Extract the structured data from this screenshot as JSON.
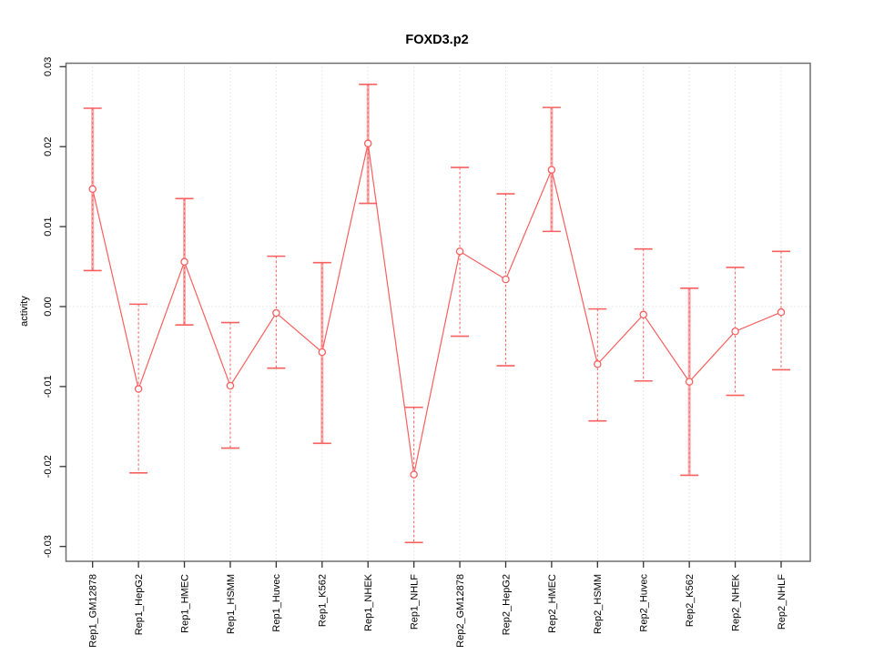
{
  "title": "FOXD3.p2",
  "chart_data": {
    "type": "line",
    "title": "FOXD3.p2",
    "xlabel": "",
    "ylabel": "activity",
    "ylim": [
      -0.031,
      0.031
    ],
    "yticks": [
      0.03,
      0.02,
      0.01,
      0.0,
      -0.01,
      -0.02,
      -0.03
    ],
    "ytick_labels": [
      "0.03",
      "0.02",
      "0.01",
      "0.00",
      "-0.01",
      "-0.02",
      "-0.03"
    ],
    "grid": {
      "vertical_per_category": true,
      "horizontal_at_zero_only": true,
      "style": "dotted"
    },
    "legend": "none",
    "marker": "open-circle",
    "colors": {
      "series": "#f95f5f",
      "error_band": "#f6acac",
      "grid": "#d4d4d4",
      "box": "#6f6f6f",
      "tick": "#333333"
    },
    "categories": [
      "Rep1_GM12878",
      "Rep1_HepG2",
      "Rep1_HMEC",
      "Rep1_HSMM",
      "Rep1_Huvec",
      "Rep1_K562",
      "Rep1_NHEK",
      "Rep1_NHLF",
      "Rep2_GM12878",
      "Rep2_HepG2",
      "Rep2_HMEC",
      "Rep2_HSMM",
      "Rep2_Huvec",
      "Rep2_K562",
      "Rep2_NHEK",
      "Rep2_NHLF"
    ],
    "points": [
      {
        "label": "Rep1_GM12878",
        "value": 0.0147,
        "lower": 0.0045,
        "upper": 0.0248,
        "thick_band": true
      },
      {
        "label": "Rep1_HepG2",
        "value": -0.0103,
        "lower": -0.0208,
        "upper": 0.0003,
        "thick_band": false
      },
      {
        "label": "Rep1_HMEC",
        "value": 0.0056,
        "lower": -0.0023,
        "upper": 0.0135,
        "thick_band": true
      },
      {
        "label": "Rep1_HSMM",
        "value": -0.0099,
        "lower": -0.0177,
        "upper": -0.002,
        "thick_band": false
      },
      {
        "label": "Rep1_Huvec",
        "value": -0.0008,
        "lower": -0.0077,
        "upper": 0.0063,
        "thick_band": false
      },
      {
        "label": "Rep1_K562",
        "value": -0.0057,
        "lower": -0.0171,
        "upper": 0.0055,
        "thick_band": true
      },
      {
        "label": "Rep1_NHEK",
        "value": 0.0204,
        "lower": 0.0129,
        "upper": 0.0278,
        "thick_band": true
      },
      {
        "label": "Rep1_NHLF",
        "value": -0.021,
        "lower": -0.0295,
        "upper": -0.0126,
        "thick_band": false
      },
      {
        "label": "Rep2_GM12878",
        "value": 0.0069,
        "lower": -0.0037,
        "upper": 0.0174,
        "thick_band": false
      },
      {
        "label": "Rep2_HepG2",
        "value": 0.0034,
        "lower": -0.0074,
        "upper": 0.0141,
        "thick_band": false
      },
      {
        "label": "Rep2_HMEC",
        "value": 0.0171,
        "lower": 0.0094,
        "upper": 0.0249,
        "thick_band": true
      },
      {
        "label": "Rep2_HSMM",
        "value": -0.0072,
        "lower": -0.0143,
        "upper": -0.0003,
        "thick_band": false
      },
      {
        "label": "Rep2_Huvec",
        "value": -0.001,
        "lower": -0.0093,
        "upper": 0.0072,
        "thick_band": false
      },
      {
        "label": "Rep2_K562",
        "value": -0.0094,
        "lower": -0.0211,
        "upper": 0.0023,
        "thick_band": true
      },
      {
        "label": "Rep2_NHEK",
        "value": -0.0031,
        "lower": -0.0111,
        "upper": 0.0049,
        "thick_band": false
      },
      {
        "label": "Rep2_NHLF",
        "value": -0.0007,
        "lower": -0.0079,
        "upper": 0.0069,
        "thick_band": false
      }
    ]
  }
}
